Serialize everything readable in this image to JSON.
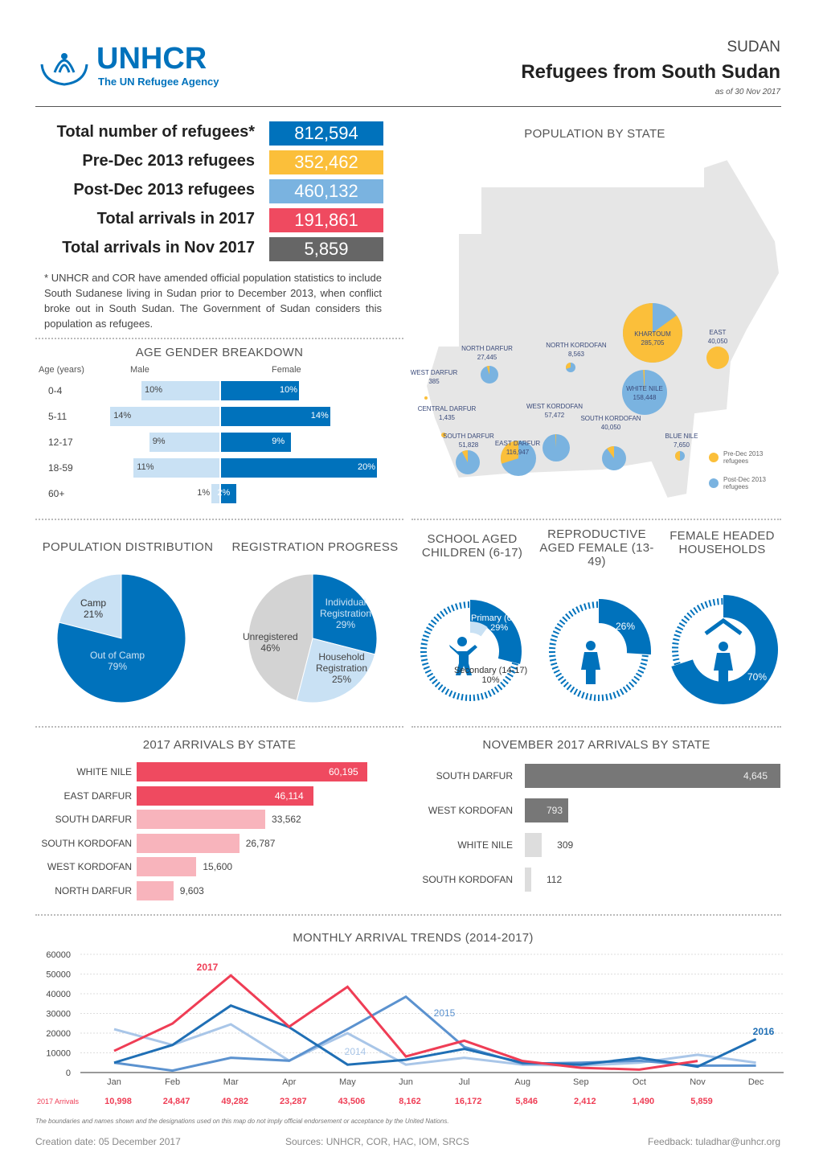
{
  "header": {
    "org": "UNHCR",
    "org_sub": "The UN Refugee Agency",
    "country": "SUDAN",
    "title": "Refugees from South Sudan",
    "date": "as of 30 Nov 2017"
  },
  "key_figures": [
    {
      "label": "Total number of refugees*",
      "value": "812,594",
      "color": "#0072bc"
    },
    {
      "label": "Pre-Dec 2013 refugees",
      "value": "352,462",
      "color": "#fbbf3a"
    },
    {
      "label": "Post-Dec 2013 refugees",
      "value": "460,132",
      "color": "#7ab3e0"
    },
    {
      "label": "Total arrivals in 2017",
      "value": "191,861",
      "color": "#ef4a60"
    },
    {
      "label": "Total arrivals in Nov 2017",
      "value": "5,859",
      "color": "#666666"
    }
  ],
  "footnote": "* UNHCR and COR have amended official population statistics to include South Sudanese living in Sudan prior to December 2013, when conflict broke out in South Sudan. The Government of Sudan considers this population as refugees.",
  "age_gender": {
    "title": "AGE GENDER BREAKDOWN",
    "col_age": "Age (years)",
    "col_male": "Male",
    "col_female": "Female",
    "rows": [
      {
        "age": "0-4",
        "male": 10,
        "female": 10
      },
      {
        "age": "5-11",
        "male": 14,
        "female": 14
      },
      {
        "age": "12-17",
        "male": 9,
        "female": 9
      },
      {
        "age": "18-59",
        "male": 11,
        "female": 20
      },
      {
        "age": "60+",
        "male": 1,
        "female": 2
      }
    ]
  },
  "map": {
    "title": "POPULATION BY STATE",
    "legend_pre": "Pre-Dec 2013 refugees",
    "legend_post": "Post-Dec 2013 refugees",
    "states": [
      {
        "name": "KHARTOUM",
        "value": "285,705",
        "pre_share": 0.85
      },
      {
        "name": "EAST",
        "value": "40,050",
        "pre_share": 1.0
      },
      {
        "name": "NORTH DARFUR",
        "value": "27,445",
        "pre_share": 0.05
      },
      {
        "name": "NORTH KORDOFAN",
        "value": "8,563",
        "pre_share": 0.3
      },
      {
        "name": "WEST DARFUR",
        "value": "385",
        "pre_share": 1.0
      },
      {
        "name": "WHITE NILE",
        "value": "158,448",
        "pre_share": 0.01
      },
      {
        "name": "CENTRAL DARFUR",
        "value": "1,435",
        "pre_share": 1.0
      },
      {
        "name": "WEST KORDOFAN",
        "value": "57,472",
        "pre_share": 0.01
      },
      {
        "name": "SOUTH KORDOFAN",
        "value": "40,050",
        "pre_share": 0.1
      },
      {
        "name": "BLUE NILE",
        "value": "7,650",
        "pre_share": 0.5
      },
      {
        "name": "SOUTH DARFUR",
        "value": "51,828",
        "pre_share": 0.08
      },
      {
        "name": "EAST DARFUR",
        "value": "116,947",
        "pre_share": 0.3
      }
    ]
  },
  "population_distribution": {
    "title": "POPULATION DISTRIBUTION",
    "slices": [
      {
        "label": "Camp",
        "pct": "21%",
        "value": 21
      },
      {
        "label": "Out of Camp",
        "pct": "79%",
        "value": 79
      }
    ]
  },
  "registration": {
    "title": "REGISTRATION PROGRESS",
    "slices": [
      {
        "label": "Individual Registration",
        "pct": "29%",
        "value": 29
      },
      {
        "label": "Household Registration",
        "pct": "25%",
        "value": 25
      },
      {
        "label": "Unregistered",
        "pct": "46%",
        "value": 46
      }
    ]
  },
  "school": {
    "title": "SCHOOL AGED CHILDREN (6-17)",
    "primary": "Primary (6-13)",
    "primary_pct": "29%",
    "primary_value": 29,
    "secondary": "Secondary (14-17)",
    "secondary_pct": "10%",
    "secondary_value": 10
  },
  "reproductive": {
    "title": "REPRODUCTIVE AGED FEMALE (13-49)",
    "pct": "26%",
    "value": 26
  },
  "female_headed": {
    "title": "FEMALE HEADED HOUSEHOLDS",
    "pct": "70%",
    "value": 70
  },
  "arrivals_2017": {
    "title": "2017 ARRIVALS BY STATE",
    "rows": [
      {
        "state": "WHITE NILE",
        "value": 60195,
        "label": "60,195"
      },
      {
        "state": "EAST DARFUR",
        "value": 46114,
        "label": "46,114"
      },
      {
        "state": "SOUTH DARFUR",
        "value": 33562,
        "label": "33,562"
      },
      {
        "state": "SOUTH KORDOFAN",
        "value": 26787,
        "label": "26,787"
      },
      {
        "state": "WEST KORDOFAN",
        "value": 15600,
        "label": "15,600"
      },
      {
        "state": "NORTH DARFUR",
        "value": 9603,
        "label": "9,603"
      }
    ]
  },
  "arrivals_nov": {
    "title": "NOVEMBER 2017 ARRIVALS BY STATE",
    "rows": [
      {
        "state": "SOUTH DARFUR",
        "value": 4645,
        "label": "4,645"
      },
      {
        "state": "WEST KORDOFAN",
        "value": 793,
        "label": "793"
      },
      {
        "state": "WHITE NILE",
        "value": 309,
        "label": "309"
      },
      {
        "state": "SOUTH KORDOFAN",
        "value": 112,
        "label": "112"
      }
    ]
  },
  "chart_data": {
    "type": "line",
    "title": "MONTHLY ARRIVAL TRENDS (2014-2017)",
    "categories": [
      "Jan",
      "Feb",
      "Mar",
      "Apr",
      "May",
      "Jun",
      "Jul",
      "Aug",
      "Sep",
      "Oct",
      "Nov",
      "Dec"
    ],
    "yticks": [
      "0",
      "10000",
      "20000",
      "30000",
      "40000",
      "50000",
      "60000"
    ],
    "ylim": [
      0,
      60000
    ],
    "series": [
      {
        "name": "2014",
        "color": "#a9c6e8",
        "values": [
          22000,
          14000,
          24500,
          6000,
          20000,
          4000,
          7500,
          4000,
          3500,
          5000,
          9000,
          5000
        ]
      },
      {
        "name": "2015",
        "color": "#5b92cf",
        "values": [
          5000,
          1000,
          7500,
          6000,
          22000,
          38500,
          13000,
          4500,
          5000,
          6000,
          3500,
          3500
        ]
      },
      {
        "name": "2016",
        "color": "#1f6fb5",
        "values": [
          5000,
          14000,
          34000,
          23000,
          4000,
          6500,
          12000,
          5000,
          4000,
          7500,
          3000,
          17000
        ]
      },
      {
        "name": "2017",
        "color": "#ef3d55",
        "values": [
          10998,
          24847,
          49282,
          23287,
          43506,
          8162,
          16172,
          5846,
          2412,
          1490,
          5859,
          null
        ]
      }
    ],
    "row_label": "2017 Arrivals",
    "row_values": [
      "10,998",
      "24,847",
      "49,282",
      "23,287",
      "43,506",
      "8,162",
      "16,172",
      "5,846",
      "2,412",
      "1,490",
      "5,859"
    ]
  },
  "footer": {
    "disclaimer": "The boundaries and names shown and the designations used on this map do not imply official endorsement or acceptance by the United Nations.",
    "creation": "Creation date: 05 December 2017",
    "sources": "Sources: UNHCR, COR, HAC, IOM, SRCS",
    "feedback": "Feedback: tuladhar@unhcr.org"
  }
}
